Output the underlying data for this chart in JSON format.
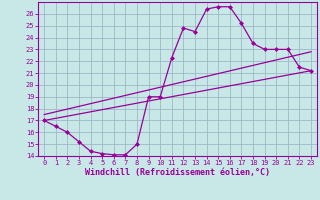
{
  "background_color": "#c8e8e8",
  "grid_color": "#a0b8c8",
  "line_color": "#990099",
  "marker_color": "#990099",
  "xlabel": "Windchill (Refroidissement éolien,°C)",
  "xlabel_fontsize": 6.0,
  "xlim": [
    -0.5,
    23.5
  ],
  "ylim": [
    14,
    27
  ],
  "ytick_labels": [
    "14",
    "15",
    "16",
    "17",
    "18",
    "19",
    "20",
    "21",
    "22",
    "23",
    "24",
    "25",
    "26"
  ],
  "ytick_vals": [
    14,
    15,
    16,
    17,
    18,
    19,
    20,
    21,
    22,
    23,
    24,
    25,
    26
  ],
  "xtick_vals": [
    0,
    1,
    2,
    3,
    4,
    5,
    6,
    7,
    8,
    9,
    10,
    11,
    12,
    13,
    14,
    15,
    16,
    17,
    18,
    19,
    20,
    21,
    22,
    23
  ],
  "curve1_x": [
    0,
    1,
    2,
    3,
    4,
    5,
    6,
    7,
    8,
    9,
    10,
    11,
    12,
    13,
    14,
    15,
    16,
    17,
    18,
    19,
    20,
    21,
    22,
    23
  ],
  "curve1_y": [
    17.0,
    16.5,
    16.0,
    15.2,
    14.4,
    14.2,
    14.1,
    14.1,
    15.0,
    19.0,
    19.0,
    22.3,
    24.8,
    24.5,
    26.4,
    26.6,
    26.6,
    25.2,
    23.5,
    23.0,
    23.0,
    23.0,
    21.5,
    21.2
  ],
  "line1_x": [
    0,
    23
  ],
  "line1_y": [
    17.0,
    21.2
  ],
  "line2_x": [
    0,
    23
  ],
  "line2_y": [
    17.5,
    22.8
  ]
}
